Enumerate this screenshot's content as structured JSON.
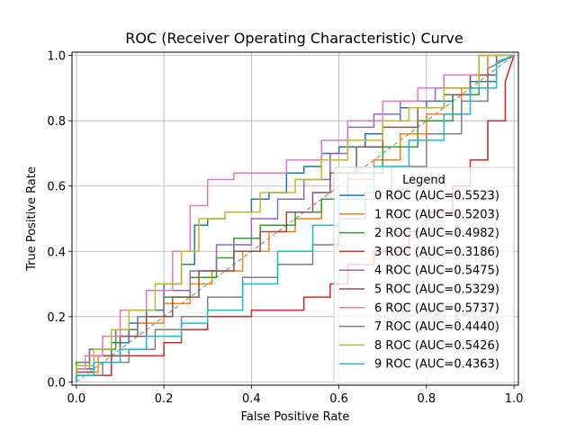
{
  "chart_data": {
    "type": "line",
    "title": "ROC (Receiver Operating Characteristic) Curve",
    "xlabel": "False Positive Rate",
    "ylabel": "True Positive Rate",
    "xlim": [
      -0.01,
      1.01
    ],
    "ylim": [
      -0.01,
      1.01
    ],
    "x_ticks": [
      "0.0",
      "0.2",
      "0.4",
      "0.6",
      "0.8",
      "1.0"
    ],
    "y_ticks": [
      "0.0",
      "0.2",
      "0.4",
      "0.6",
      "0.8",
      "1.0"
    ],
    "tick_values": [
      0.0,
      0.2,
      0.4,
      0.6,
      0.8,
      1.0
    ],
    "grid": true,
    "legend_title": "Legend",
    "legend_position": "lower-right",
    "diagonal": {
      "x": [
        0,
        1
      ],
      "y": [
        0,
        1
      ],
      "color": "#808080",
      "style": "dashed"
    },
    "series": [
      {
        "name": "0 ROC (AUC=0.5523)",
        "color": "#1f77b4",
        "x": [
          0,
          0,
          0.04,
          0.04,
          0.08,
          0.08,
          0.12,
          0.12,
          0.16,
          0.16,
          0.2,
          0.2,
          0.24,
          0.24,
          0.27,
          0.27,
          0.3,
          0.3,
          0.34,
          0.34,
          0.4,
          0.4,
          0.44,
          0.44,
          0.48,
          0.48,
          0.52,
          0.52,
          0.56,
          0.56,
          0.6,
          0.6,
          0.66,
          0.66,
          0.7,
          0.7,
          0.74,
          0.74,
          0.8,
          0.8,
          0.86,
          0.86,
          0.9,
          0.9,
          0.96,
          0.96,
          1.0
        ],
        "y": [
          0,
          0.04,
          0.04,
          0.08,
          0.08,
          0.12,
          0.12,
          0.18,
          0.18,
          0.22,
          0.22,
          0.3,
          0.3,
          0.36,
          0.36,
          0.48,
          0.48,
          0.5,
          0.5,
          0.52,
          0.52,
          0.56,
          0.56,
          0.58,
          0.58,
          0.64,
          0.64,
          0.66,
          0.66,
          0.7,
          0.7,
          0.72,
          0.72,
          0.76,
          0.76,
          0.8,
          0.8,
          0.84,
          0.84,
          0.86,
          0.86,
          0.88,
          0.88,
          0.92,
          0.92,
          1.0,
          1.0
        ]
      },
      {
        "name": "1 ROC (AUC=0.5203)",
        "color": "#ff7f0e",
        "x": [
          0,
          0,
          0.05,
          0.05,
          0.1,
          0.1,
          0.14,
          0.14,
          0.2,
          0.2,
          0.26,
          0.26,
          0.31,
          0.31,
          0.38,
          0.38,
          0.44,
          0.44,
          0.5,
          0.5,
          0.56,
          0.56,
          0.62,
          0.62,
          0.68,
          0.68,
          0.74,
          0.74,
          0.8,
          0.8,
          0.88,
          0.88,
          0.94,
          0.94,
          1.0
        ],
        "y": [
          0,
          0.03,
          0.03,
          0.08,
          0.08,
          0.14,
          0.14,
          0.18,
          0.18,
          0.24,
          0.24,
          0.3,
          0.3,
          0.34,
          0.34,
          0.4,
          0.4,
          0.46,
          0.46,
          0.5,
          0.5,
          0.56,
          0.56,
          0.62,
          0.62,
          0.68,
          0.68,
          0.76,
          0.76,
          0.82,
          0.82,
          0.9,
          0.9,
          1.0,
          1.0
        ]
      },
      {
        "name": "2 ROC (AUC=0.4982)",
        "color": "#2ca02c",
        "x": [
          0,
          0,
          0.03,
          0.03,
          0.09,
          0.09,
          0.14,
          0.14,
          0.2,
          0.2,
          0.26,
          0.26,
          0.32,
          0.32,
          0.36,
          0.36,
          0.42,
          0.42,
          0.5,
          0.5,
          0.56,
          0.56,
          0.62,
          0.62,
          0.7,
          0.7,
          0.78,
          0.78,
          0.86,
          0.86,
          0.92,
          0.92,
          1.0
        ],
        "y": [
          0,
          0.06,
          0.06,
          0.1,
          0.1,
          0.16,
          0.16,
          0.2,
          0.2,
          0.26,
          0.26,
          0.32,
          0.32,
          0.38,
          0.38,
          0.44,
          0.44,
          0.48,
          0.48,
          0.52,
          0.52,
          0.56,
          0.56,
          0.64,
          0.64,
          0.72,
          0.72,
          0.8,
          0.8,
          0.88,
          0.88,
          1.0,
          1.0
        ]
      },
      {
        "name": "3 ROC (AUC=0.3186)",
        "color": "#d62728",
        "x": [
          0,
          0,
          0.08,
          0.08,
          0.2,
          0.2,
          0.24,
          0.24,
          0.3,
          0.3,
          0.4,
          0.4,
          0.52,
          0.52,
          0.58,
          0.58,
          0.62,
          0.62,
          0.68,
          0.68,
          0.76,
          0.76,
          0.8,
          0.8,
          0.86,
          0.86,
          0.9,
          0.9,
          0.94,
          0.94,
          0.98,
          0.98,
          1.0
        ],
        "y": [
          0,
          0.02,
          0.02,
          0.08,
          0.08,
          0.12,
          0.12,
          0.16,
          0.16,
          0.2,
          0.2,
          0.22,
          0.22,
          0.26,
          0.26,
          0.3,
          0.3,
          0.36,
          0.36,
          0.4,
          0.4,
          0.46,
          0.46,
          0.52,
          0.52,
          0.6,
          0.6,
          0.68,
          0.68,
          0.8,
          0.8,
          0.92,
          1.0
        ]
      },
      {
        "name": "4 ROC (AUC=0.5475)",
        "color": "#9467bd",
        "x": [
          0,
          0,
          0.03,
          0.03,
          0.08,
          0.08,
          0.14,
          0.14,
          0.2,
          0.2,
          0.26,
          0.26,
          0.32,
          0.32,
          0.4,
          0.4,
          0.46,
          0.46,
          0.52,
          0.52,
          0.58,
          0.58,
          0.62,
          0.62,
          0.68,
          0.68,
          0.74,
          0.74,
          0.82,
          0.82,
          0.9,
          0.9,
          0.96,
          0.96,
          1.0
        ],
        "y": [
          0,
          0.04,
          0.04,
          0.1,
          0.1,
          0.14,
          0.14,
          0.2,
          0.2,
          0.28,
          0.28,
          0.34,
          0.34,
          0.42,
          0.42,
          0.5,
          0.5,
          0.56,
          0.56,
          0.62,
          0.62,
          0.7,
          0.7,
          0.78,
          0.78,
          0.82,
          0.82,
          0.86,
          0.86,
          0.9,
          0.9,
          0.94,
          0.94,
          1.0,
          1.0
        ]
      },
      {
        "name": "5 ROC (AUC=0.5329)",
        "color": "#8c564b",
        "x": [
          0,
          0,
          0.04,
          0.04,
          0.1,
          0.1,
          0.16,
          0.16,
          0.22,
          0.22,
          0.28,
          0.28,
          0.36,
          0.36,
          0.42,
          0.42,
          0.48,
          0.48,
          0.54,
          0.54,
          0.58,
          0.58,
          0.64,
          0.64,
          0.7,
          0.7,
          0.78,
          0.78,
          0.84,
          0.84,
          0.9,
          0.9,
          0.96,
          0.96,
          1.0
        ],
        "y": [
          0,
          0.03,
          0.03,
          0.08,
          0.08,
          0.14,
          0.14,
          0.2,
          0.2,
          0.26,
          0.26,
          0.34,
          0.34,
          0.4,
          0.4,
          0.46,
          0.46,
          0.52,
          0.52,
          0.58,
          0.58,
          0.64,
          0.64,
          0.72,
          0.72,
          0.78,
          0.78,
          0.84,
          0.84,
          0.88,
          0.88,
          0.94,
          0.94,
          1.0,
          1.0
        ]
      },
      {
        "name": "6 ROC (AUC=0.5737)",
        "color": "#e377c2",
        "x": [
          0,
          0,
          0.02,
          0.02,
          0.06,
          0.06,
          0.1,
          0.1,
          0.16,
          0.16,
          0.22,
          0.22,
          0.26,
          0.26,
          0.3,
          0.3,
          0.36,
          0.36,
          0.48,
          0.48,
          0.56,
          0.56,
          0.62,
          0.62,
          0.7,
          0.7,
          0.78,
          0.78,
          0.84,
          0.84,
          0.92,
          0.92,
          1.0
        ],
        "y": [
          0,
          0.04,
          0.04,
          0.08,
          0.08,
          0.14,
          0.14,
          0.22,
          0.22,
          0.28,
          0.28,
          0.4,
          0.4,
          0.54,
          0.54,
          0.62,
          0.62,
          0.64,
          0.64,
          0.68,
          0.68,
          0.74,
          0.74,
          0.8,
          0.8,
          0.86,
          0.86,
          0.9,
          0.9,
          0.94,
          0.94,
          1.0,
          1.0
        ]
      },
      {
        "name": "7 ROC (AUC=0.4440)",
        "color": "#7f7f7f",
        "x": [
          0,
          0,
          0.06,
          0.06,
          0.12,
          0.12,
          0.18,
          0.18,
          0.24,
          0.24,
          0.3,
          0.3,
          0.38,
          0.38,
          0.46,
          0.46,
          0.54,
          0.54,
          0.6,
          0.6,
          0.66,
          0.66,
          0.72,
          0.72,
          0.8,
          0.8,
          0.88,
          0.88,
          0.94,
          0.94,
          1.0
        ],
        "y": [
          0,
          0.02,
          0.02,
          0.06,
          0.06,
          0.1,
          0.1,
          0.16,
          0.16,
          0.2,
          0.2,
          0.26,
          0.26,
          0.32,
          0.32,
          0.36,
          0.36,
          0.42,
          0.42,
          0.5,
          0.5,
          0.58,
          0.58,
          0.66,
          0.66,
          0.76,
          0.76,
          0.86,
          0.86,
          0.96,
          1.0
        ]
      },
      {
        "name": "8 ROC (AUC=0.5426)",
        "color": "#bcbd22",
        "x": [
          0,
          0,
          0.04,
          0.04,
          0.08,
          0.08,
          0.12,
          0.12,
          0.18,
          0.18,
          0.24,
          0.24,
          0.28,
          0.28,
          0.34,
          0.34,
          0.42,
          0.42,
          0.5,
          0.5,
          0.56,
          0.56,
          0.62,
          0.62,
          0.7,
          0.7,
          0.76,
          0.76,
          0.84,
          0.84,
          0.92,
          0.92,
          1.0
        ],
        "y": [
          0,
          0.05,
          0.05,
          0.1,
          0.1,
          0.16,
          0.16,
          0.22,
          0.22,
          0.3,
          0.3,
          0.4,
          0.4,
          0.5,
          0.5,
          0.52,
          0.52,
          0.58,
          0.58,
          0.62,
          0.62,
          0.68,
          0.68,
          0.74,
          0.74,
          0.8,
          0.8,
          0.84,
          0.84,
          0.9,
          0.9,
          1.0,
          1.0
        ]
      },
      {
        "name": "9 ROC (AUC=0.4363)",
        "color": "#17becf",
        "x": [
          0,
          0,
          0.04,
          0.04,
          0.1,
          0.1,
          0.16,
          0.16,
          0.24,
          0.24,
          0.3,
          0.3,
          0.38,
          0.38,
          0.46,
          0.46,
          0.54,
          0.54,
          0.6,
          0.6,
          0.68,
          0.68,
          0.76,
          0.76,
          0.84,
          0.84,
          0.9,
          0.9,
          0.96,
          0.96,
          1.0
        ],
        "y": [
          0,
          0.02,
          0.02,
          0.06,
          0.06,
          0.1,
          0.1,
          0.14,
          0.14,
          0.18,
          0.18,
          0.22,
          0.22,
          0.3,
          0.3,
          0.4,
          0.4,
          0.48,
          0.48,
          0.56,
          0.56,
          0.66,
          0.66,
          0.74,
          0.74,
          0.82,
          0.82,
          0.9,
          0.9,
          0.98,
          1.0
        ]
      }
    ]
  }
}
